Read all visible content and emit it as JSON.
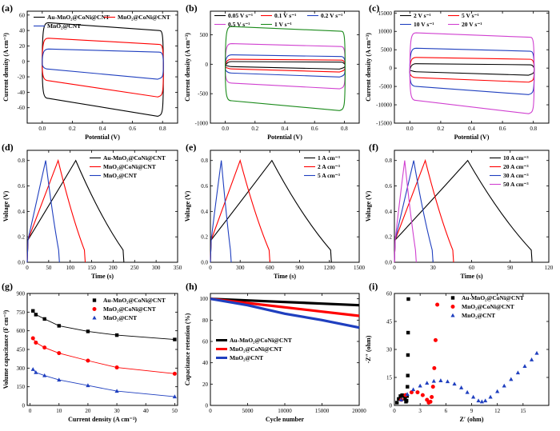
{
  "chart_data": [
    {
      "panel": "(a)",
      "type": "line",
      "xlabel": "Potential (V)",
      "ylabel": "Current density (A cm⁻³)",
      "xlim": [
        -0.1,
        0.9
      ],
      "ylim": [
        -80,
        65
      ],
      "xticks": [
        0.0,
        0.2,
        0.4,
        0.6,
        0.8
      ],
      "yticks": [
        -60,
        -40,
        -20,
        0,
        20,
        40,
        60
      ],
      "legend_position": "top",
      "series": [
        {
          "name": "Au-MnO₂@CoNi@CNT",
          "color": "#000000",
          "kind": "cv",
          "x": [
            0,
            0.8
          ],
          "upper": [
            50,
            40
          ],
          "lower": [
            -48,
            -69
          ]
        },
        {
          "name": "MnO₂@CoNi@CNT",
          "color": "#ff0000",
          "kind": "cv",
          "x": [
            0,
            0.8
          ],
          "upper": [
            30,
            22
          ],
          "lower": [
            -25,
            -44
          ]
        },
        {
          "name": "MnO₂@CNT",
          "color": "#1f3fbf",
          "kind": "cv",
          "x": [
            0,
            0.8
          ],
          "upper": [
            16,
            12
          ],
          "lower": [
            -10,
            -21
          ]
        }
      ]
    },
    {
      "panel": "(b)",
      "type": "line",
      "xlabel": "Potential (V)",
      "ylabel": "Current density (A cm⁻³)",
      "xlim": [
        -0.1,
        0.9
      ],
      "ylim": [
        -1000,
        900
      ],
      "xticks": [
        0.0,
        0.2,
        0.4,
        0.6,
        0.8
      ],
      "yticks": [
        -1000,
        -500,
        0,
        500
      ],
      "legend_position": "top",
      "series": [
        {
          "name": "0.05 V s⁻¹",
          "color": "#000000",
          "kind": "cv",
          "x": [
            0,
            0.8
          ],
          "upper": [
            45,
            35
          ],
          "lower": [
            -40,
            -55
          ]
        },
        {
          "name": "0.1 V s⁻¹",
          "color": "#ff0000",
          "kind": "cv",
          "x": [
            0,
            0.8
          ],
          "upper": [
            85,
            70
          ],
          "lower": [
            -80,
            -105
          ]
        },
        {
          "name": "0.2 V s⁻¹",
          "color": "#1f3fbf",
          "kind": "cv",
          "x": [
            0,
            0.8
          ],
          "upper": [
            160,
            130
          ],
          "lower": [
            -150,
            -190
          ]
        },
        {
          "name": "0.5 V s⁻¹",
          "color": "#d040d0",
          "kind": "cv",
          "x": [
            0,
            0.8
          ],
          "upper": [
            350,
            300
          ],
          "lower": [
            -320,
            -390
          ]
        },
        {
          "name": "1 V s⁻¹",
          "color": "#1a8a1a",
          "kind": "cv",
          "x": [
            0,
            0.8
          ],
          "upper": [
            640,
            560
          ],
          "lower": [
            -620,
            -760
          ]
        }
      ]
    },
    {
      "panel": "(c)",
      "type": "line",
      "xlabel": "Potential (V)",
      "ylabel": "Current density (A cm⁻³)",
      "xlim": [
        -0.1,
        0.9
      ],
      "ylim": [
        -15000,
        15500
      ],
      "xticks": [
        0.0,
        0.2,
        0.4,
        0.6,
        0.8
      ],
      "yticks": [
        -15000,
        -10000,
        -5000,
        0,
        5000,
        10000,
        15000
      ],
      "legend_position": "top",
      "series": [
        {
          "name": "2 V s⁻¹",
          "color": "#000000",
          "kind": "cv",
          "x": [
            0,
            0.8
          ],
          "upper": [
            1200,
            900
          ],
          "lower": [
            -1000,
            -1500
          ]
        },
        {
          "name": "5 V s⁻¹",
          "color": "#ff0000",
          "kind": "cv",
          "x": [
            0,
            0.8
          ],
          "upper": [
            2900,
            2400
          ],
          "lower": [
            -2600,
            -3400
          ]
        },
        {
          "name": "10 V s⁻¹",
          "color": "#1f3fbf",
          "kind": "cv",
          "x": [
            0,
            0.8
          ],
          "upper": [
            5400,
            4600
          ],
          "lower": [
            -5000,
            -6800
          ]
        },
        {
          "name": "20 V s⁻¹",
          "color": "#d040d0",
          "kind": "cv",
          "x": [
            0,
            0.8
          ],
          "upper": [
            9600,
            8400
          ],
          "lower": [
            -8800,
            -12000
          ]
        }
      ]
    },
    {
      "panel": "(d)",
      "type": "line",
      "xlabel": "Time (s)",
      "ylabel": "Voltage (V)",
      "xlim": [
        0,
        350
      ],
      "ylim": [
        0,
        0.88
      ],
      "xticks": [
        0,
        50,
        100,
        150,
        200,
        250,
        300,
        350
      ],
      "yticks": [
        0.0,
        0.2,
        0.4,
        0.6,
        0.8
      ],
      "legend_position": "top-right",
      "series": [
        {
          "name": "Au-MnO₂@CoNi@CNT",
          "color": "#000000",
          "kind": "gcd",
          "peak": 113,
          "end": 225,
          "vmax": 0.8
        },
        {
          "name": "MnO₂@CoNi@CNT",
          "color": "#ff0000",
          "kind": "gcd",
          "peak": 72,
          "end": 135,
          "vmax": 0.8
        },
        {
          "name": "MnO₂@CNT",
          "color": "#1f3fbf",
          "kind": "gcd",
          "peak": 43,
          "end": 75,
          "vmax": 0.8
        }
      ]
    },
    {
      "panel": "(e)",
      "type": "line",
      "xlabel": "Time (s)",
      "ylabel": "Voltage (V)",
      "xlim": [
        0,
        1500
      ],
      "ylim": [
        0,
        0.88
      ],
      "xticks": [
        0,
        300,
        600,
        900,
        1200,
        1500
      ],
      "yticks": [
        0.0,
        0.2,
        0.4,
        0.6,
        0.8
      ],
      "legend_position": "top-right",
      "series": [
        {
          "name": "1 A cm⁻³",
          "color": "#000000",
          "kind": "gcd",
          "peak": 620,
          "end": 1220,
          "vmax": 0.8
        },
        {
          "name": "2 A cm⁻³",
          "color": "#ff0000",
          "kind": "gcd",
          "peak": 300,
          "end": 600,
          "vmax": 0.8
        },
        {
          "name": "5 A cm⁻³",
          "color": "#1f3fbf",
          "kind": "gcd",
          "peak": 110,
          "end": 210,
          "vmax": 0.8
        }
      ]
    },
    {
      "panel": "(f)",
      "type": "line",
      "xlabel": "Time (s)",
      "ylabel": "Voltage (V)",
      "xlim": [
        0,
        120
      ],
      "ylim": [
        0,
        0.88
      ],
      "xticks": [
        0,
        30,
        60,
        90,
        120
      ],
      "yticks": [
        0.0,
        0.2,
        0.4,
        0.6,
        0.8
      ],
      "legend_position": "top-right",
      "series": [
        {
          "name": "10 A cm⁻³",
          "color": "#000000",
          "kind": "gcd",
          "peak": 57,
          "end": 107,
          "vmax": 0.8
        },
        {
          "name": "20 A cm⁻³",
          "color": "#ff0000",
          "kind": "gcd",
          "peak": 24,
          "end": 46,
          "vmax": 0.8
        },
        {
          "name": "30 A cm⁻³",
          "color": "#1f3fbf",
          "kind": "gcd",
          "peak": 15,
          "end": 30,
          "vmax": 0.8
        },
        {
          "name": "50 A cm⁻³",
          "color": "#d040d0",
          "kind": "gcd",
          "peak": 8,
          "end": 17,
          "vmax": 0.8
        }
      ]
    },
    {
      "panel": "(g)",
      "type": "line",
      "xlabel": "Current density (A cm⁻³)",
      "ylabel": "Volume capacitance (F cm⁻³)",
      "xlim": [
        -1,
        51
      ],
      "ylim": [
        0,
        900
      ],
      "xticks": [
        0,
        10,
        20,
        30,
        40,
        50
      ],
      "yticks": [
        0,
        150,
        300,
        450,
        600,
        750,
        900
      ],
      "legend_position": "top-right",
      "series": [
        {
          "name": "Au-MnO₂@CoNi@CNT",
          "color": "#000000",
          "kind": "markers",
          "marker": "square",
          "x": [
            1,
            2,
            5,
            10,
            20,
            30,
            50
          ],
          "y": [
            760,
            730,
            695,
            640,
            595,
            565,
            530
          ]
        },
        {
          "name": "MnO₂@CoNi@CNT",
          "color": "#ff0000",
          "kind": "markers",
          "marker": "circle",
          "x": [
            1,
            2,
            5,
            10,
            20,
            30,
            50
          ],
          "y": [
            540,
            505,
            465,
            420,
            360,
            305,
            255
          ]
        },
        {
          "name": "MnO₂@CNT",
          "color": "#1f3fbf",
          "kind": "markers",
          "marker": "triangle",
          "x": [
            1,
            2,
            5,
            10,
            20,
            30,
            50
          ],
          "y": [
            290,
            265,
            240,
            205,
            160,
            115,
            70
          ]
        }
      ]
    },
    {
      "panel": "(h)",
      "type": "line",
      "xlabel": "Cycle number",
      "ylabel": "Capacitance retention (%)",
      "xlim": [
        0,
        20000
      ],
      "ylim": [
        0,
        105
      ],
      "xticks": [
        0,
        5000,
        10000,
        15000,
        20000
      ],
      "yticks": [
        0,
        20,
        40,
        60,
        80,
        100
      ],
      "legend_position": "center-left",
      "series": [
        {
          "name": "Au-MnO₂@CoNi@CNT",
          "color": "#000000",
          "kind": "line",
          "x": [
            0,
            5000,
            10000,
            15000,
            20000
          ],
          "y": [
            100,
            98.5,
            97,
            95.5,
            94
          ]
        },
        {
          "name": "MnO₂@CoNi@CNT",
          "color": "#ff0000",
          "kind": "line",
          "x": [
            0,
            5000,
            10000,
            15000,
            20000
          ],
          "y": [
            100,
            96,
            92,
            88,
            84
          ]
        },
        {
          "name": "MnO₂@CNT",
          "color": "#1f3fbf",
          "kind": "line",
          "x": [
            0,
            5000,
            10000,
            15000,
            20000
          ],
          "y": [
            100,
            94,
            86,
            80,
            73
          ]
        }
      ]
    },
    {
      "panel": "(i)",
      "type": "scatter",
      "xlabel": "Z′ (ohm)",
      "ylabel": "-Z″ (ohm)",
      "xlim": [
        0,
        18
      ],
      "ylim": [
        0,
        60
      ],
      "xticks": [
        0,
        3,
        6,
        9,
        12,
        15
      ],
      "yticks": [
        0,
        15,
        30,
        45,
        60
      ],
      "legend_position": "top-right",
      "series": [
        {
          "name": "Au-MnO₂@CoNi@CNT",
          "color": "#000000",
          "kind": "markers",
          "marker": "square",
          "x": [
            0.3,
            0.5,
            0.7,
            0.9,
            1.1,
            1.25,
            1.35,
            1.42,
            1.48,
            1.52,
            1.56,
            1.58,
            1.6,
            1.63
          ],
          "y": [
            1.5,
            3.5,
            5.0,
            5.5,
            5.0,
            3.5,
            2.0,
            2.5,
            5.0,
            10,
            16,
            27,
            39,
            57
          ]
        },
        {
          "name": "MnO₂@CoNi@CNT",
          "color": "#ff0000",
          "kind": "markers",
          "marker": "circle",
          "x": [
            0.8,
            1.3,
            2.0,
            2.7,
            3.3,
            3.8,
            4.0,
            4.2,
            4.35,
            4.5,
            4.65,
            4.8,
            5.0
          ],
          "y": [
            3.0,
            5.5,
            7.0,
            7.0,
            5.5,
            3.0,
            1.5,
            2.0,
            4.5,
            10,
            20,
            35,
            54
          ]
        },
        {
          "name": "MnO₂@CNT",
          "color": "#1f3fbf",
          "kind": "markers",
          "marker": "triangle",
          "x": [
            0.8,
            1.5,
            2.2,
            3.0,
            3.8,
            4.6,
            5.4,
            6.2,
            7.0,
            7.8,
            8.5,
            9.2,
            9.8,
            10.2,
            10.6,
            11.2,
            12.0,
            12.8,
            13.6,
            14.4,
            15.2,
            16.0,
            16.6
          ],
          "y": [
            3.0,
            6.0,
            8.5,
            10.5,
            12,
            13,
            13.3,
            12.8,
            11.5,
            9.5,
            7.0,
            4.5,
            2.5,
            2.0,
            2.5,
            4.5,
            7.5,
            10.5,
            14,
            17.5,
            21,
            24.5,
            28
          ]
        }
      ]
    }
  ]
}
